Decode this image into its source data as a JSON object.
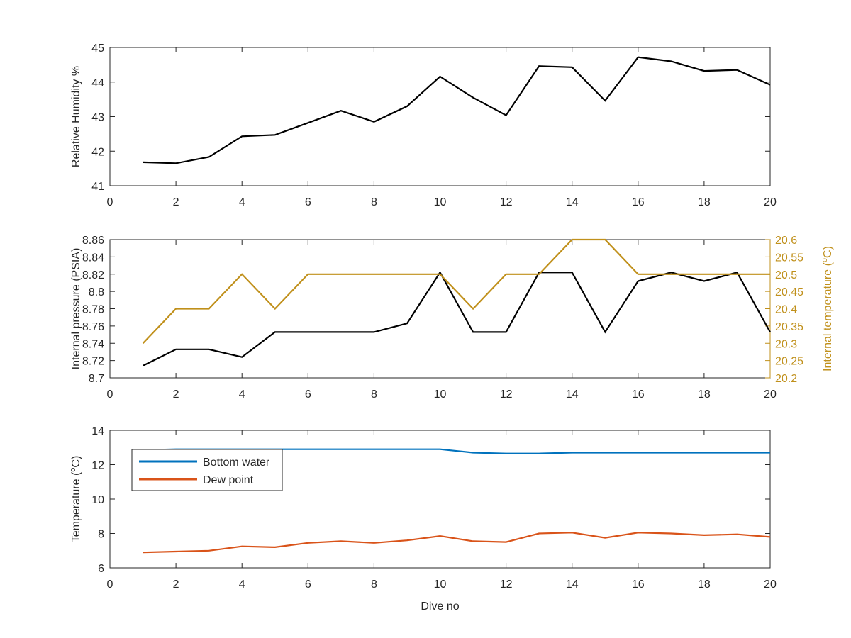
{
  "chart_data": [
    {
      "type": "line",
      "ylabel": "Relative Humidity %",
      "xlim": [
        0,
        20
      ],
      "ylim": [
        41,
        45
      ],
      "xticks": [
        "0",
        "2",
        "4",
        "6",
        "8",
        "10",
        "12",
        "14",
        "16",
        "18",
        "20"
      ],
      "yticks": [
        "41",
        "42",
        "43",
        "44",
        "45"
      ],
      "x": [
        1,
        2,
        3,
        4,
        5,
        6,
        7,
        8,
        9,
        10,
        11,
        12,
        13,
        14,
        15,
        16,
        17,
        18,
        19,
        20
      ],
      "series": [
        {
          "color": "#000000",
          "values": [
            41.68,
            41.65,
            41.83,
            42.43,
            42.47,
            42.82,
            43.17,
            42.85,
            43.3,
            44.16,
            43.55,
            43.04,
            44.46,
            44.43,
            43.46,
            44.72,
            44.6,
            44.32,
            44.35,
            43.92
          ]
        }
      ]
    },
    {
      "type": "line",
      "ylabel": "Internal pressure (PSIA)",
      "y2label": "Internal temperature (°C)",
      "xlim": [
        0,
        20
      ],
      "ylim": [
        8.7,
        8.86
      ],
      "y2lim": [
        20.2,
        20.6
      ],
      "xticks": [
        "0",
        "2",
        "4",
        "6",
        "8",
        "10",
        "12",
        "14",
        "16",
        "18",
        "20"
      ],
      "yticks": [
        "8.7",
        "8.72",
        "8.74",
        "8.76",
        "8.78",
        "8.8",
        "8.82",
        "8.84",
        "8.86"
      ],
      "y2ticks": [
        "20.2",
        "20.25",
        "20.3",
        "20.35",
        "20.4",
        "20.45",
        "20.5",
        "20.55",
        "20.6"
      ],
      "x": [
        1,
        2,
        3,
        4,
        5,
        6,
        7,
        8,
        9,
        10,
        11,
        12,
        13,
        14,
        15,
        16,
        17,
        18,
        19,
        20
      ],
      "series": [
        {
          "axis": "left",
          "color": "#000000",
          "values": [
            8.714,
            8.733,
            8.733,
            8.724,
            8.753,
            8.753,
            8.753,
            8.753,
            8.763,
            8.822,
            8.753,
            8.753,
            8.822,
            8.822,
            8.753,
            8.812,
            8.822,
            8.812,
            8.822,
            8.753
          ]
        },
        {
          "axis": "right",
          "color": "#c0901b",
          "values": [
            20.3,
            20.4,
            20.4,
            20.5,
            20.4,
            20.5,
            20.5,
            20.5,
            20.5,
            20.5,
            20.4,
            20.5,
            20.5,
            20.6,
            20.6,
            20.5,
            20.5,
            20.5,
            20.5,
            20.5
          ]
        }
      ]
    },
    {
      "type": "line",
      "xlabel": "Dive no",
      "ylabel": "Temperature (°C)",
      "xlim": [
        0,
        20
      ],
      "ylim": [
        6,
        14
      ],
      "xticks": [
        "0",
        "2",
        "4",
        "6",
        "8",
        "10",
        "12",
        "14",
        "16",
        "18",
        "20"
      ],
      "yticks": [
        "6",
        "8",
        "10",
        "12",
        "14"
      ],
      "legend": "top-left",
      "x": [
        1,
        2,
        3,
        4,
        5,
        6,
        7,
        8,
        9,
        10,
        11,
        12,
        13,
        14,
        15,
        16,
        17,
        18,
        19,
        20
      ],
      "series": [
        {
          "name": "Bottom water",
          "color": "#0072bd",
          "values": [
            12.85,
            12.9,
            12.9,
            12.9,
            12.9,
            12.9,
            12.9,
            12.9,
            12.9,
            12.9,
            12.7,
            12.65,
            12.65,
            12.7,
            12.7,
            12.7,
            12.7,
            12.7,
            12.7,
            12.7
          ]
        },
        {
          "name": "Dew point",
          "color": "#d95319",
          "values": [
            6.9,
            6.95,
            7.0,
            7.25,
            7.2,
            7.45,
            7.55,
            7.45,
            7.6,
            7.85,
            7.55,
            7.5,
            8.0,
            8.05,
            7.75,
            8.05,
            8.0,
            7.9,
            7.95,
            7.8
          ]
        }
      ]
    }
  ]
}
